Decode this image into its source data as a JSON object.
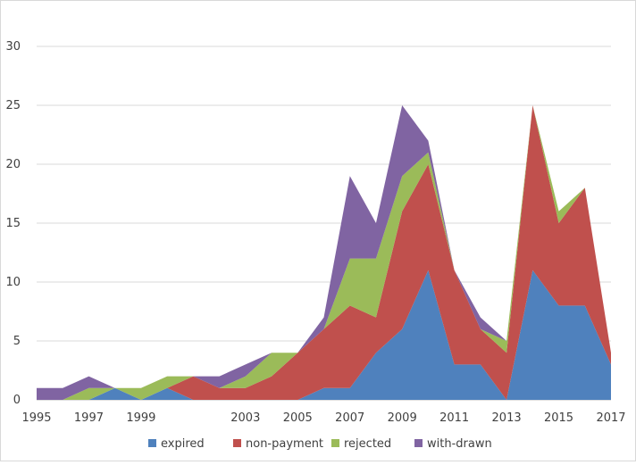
{
  "chart_data": {
    "type": "area",
    "stacked": true,
    "title": "",
    "xlabel": "",
    "ylabel": "",
    "x": [
      1995,
      1996,
      1997,
      1998,
      1999,
      2000,
      2001,
      2002,
      2003,
      2004,
      2005,
      2006,
      2007,
      2008,
      2009,
      2010,
      2011,
      2012,
      2013,
      2014,
      2015,
      2016,
      2017
    ],
    "xticks": [
      "1995",
      "1997",
      "1999",
      "2003",
      "2005",
      "2007",
      "2009",
      "2011",
      "2013",
      "2015",
      "2017"
    ],
    "yticks": [
      "0",
      "5",
      "10",
      "15",
      "20",
      "25",
      "30"
    ],
    "ylim": [
      0,
      30
    ],
    "grid": "horizontal",
    "legend_position": "bottom",
    "series": [
      {
        "name": "expired",
        "color": "#4f81bd",
        "values": [
          0,
          0,
          0,
          1,
          0,
          1,
          0,
          0,
          0,
          0,
          0,
          1,
          1,
          4,
          6,
          11,
          3,
          3,
          0,
          11,
          8,
          8,
          3
        ]
      },
      {
        "name": "non-payment",
        "color": "#c0504d",
        "values": [
          0,
          0,
          0,
          0,
          0,
          0,
          2,
          1,
          1,
          2,
          4,
          5,
          7,
          3,
          10,
          9,
          8,
          3,
          4,
          14,
          7,
          10,
          1
        ]
      },
      {
        "name": "rejected",
        "color": "#9bbb59",
        "values": [
          0,
          0,
          1,
          0,
          1,
          1,
          0,
          0,
          1,
          2,
          0,
          0,
          4,
          5,
          3,
          1,
          0,
          0,
          1,
          0,
          1,
          0,
          0
        ]
      },
      {
        "name": "with-drawn",
        "color": "#8064a2",
        "values": [
          1,
          1,
          1,
          0,
          0,
          0,
          0,
          1,
          1,
          0,
          0,
          1,
          7,
          3,
          6,
          1,
          0,
          1,
          0,
          0,
          0,
          0,
          0
        ]
      }
    ]
  }
}
